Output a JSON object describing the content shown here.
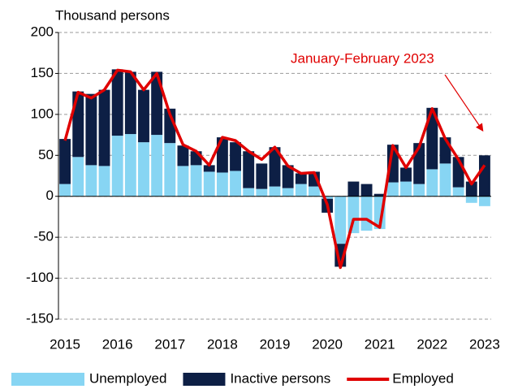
{
  "chart_data": {
    "type": "stacked-bar-line",
    "y_axis_label": "Thousand persons",
    "annotation": "January-February 2023",
    "categories": [
      "2015",
      null,
      null,
      null,
      "2016",
      null,
      null,
      null,
      "2017",
      null,
      null,
      null,
      "2018",
      null,
      null,
      null,
      "2019",
      null,
      null,
      null,
      "2020",
      null,
      null,
      null,
      "2021",
      null,
      null,
      null,
      "2022",
      null,
      null,
      null,
      "2023"
    ],
    "series": [
      {
        "name": "Unemployed",
        "kind": "bar",
        "color": "#87d5f3",
        "values": [
          15,
          48,
          38,
          37,
          74,
          76,
          66,
          75,
          65,
          37,
          38,
          30,
          29,
          31,
          10,
          9,
          12,
          10,
          15,
          12,
          -3,
          -58,
          -45,
          -42,
          -40,
          17,
          18,
          15,
          33,
          40,
          11,
          -8,
          -12
        ]
      },
      {
        "name": "Inactive persons",
        "kind": "bar",
        "color": "#0d1f45",
        "values": [
          55,
          80,
          87,
          93,
          81,
          76,
          64,
          77,
          42,
          25,
          17,
          8,
          43,
          35,
          45,
          31,
          48,
          28,
          13,
          18,
          -17,
          -28,
          18,
          15,
          3,
          46,
          17,
          50,
          75,
          32,
          37,
          18,
          50
        ]
      },
      {
        "name": "Employed",
        "kind": "line",
        "color": "#e00000",
        "values": [
          68,
          127,
          120,
          130,
          154,
          152,
          130,
          150,
          100,
          63,
          55,
          38,
          72,
          68,
          55,
          45,
          60,
          37,
          28,
          29,
          -10,
          -87,
          -28,
          -28,
          -38,
          62,
          35,
          60,
          107,
          70,
          45,
          15,
          38
        ]
      }
    ],
    "ylim": [
      -150,
      200
    ],
    "yticks": [
      -150,
      -100,
      -50,
      0,
      50,
      100,
      150,
      200
    ],
    "grid": true,
    "legend": "bottom"
  }
}
